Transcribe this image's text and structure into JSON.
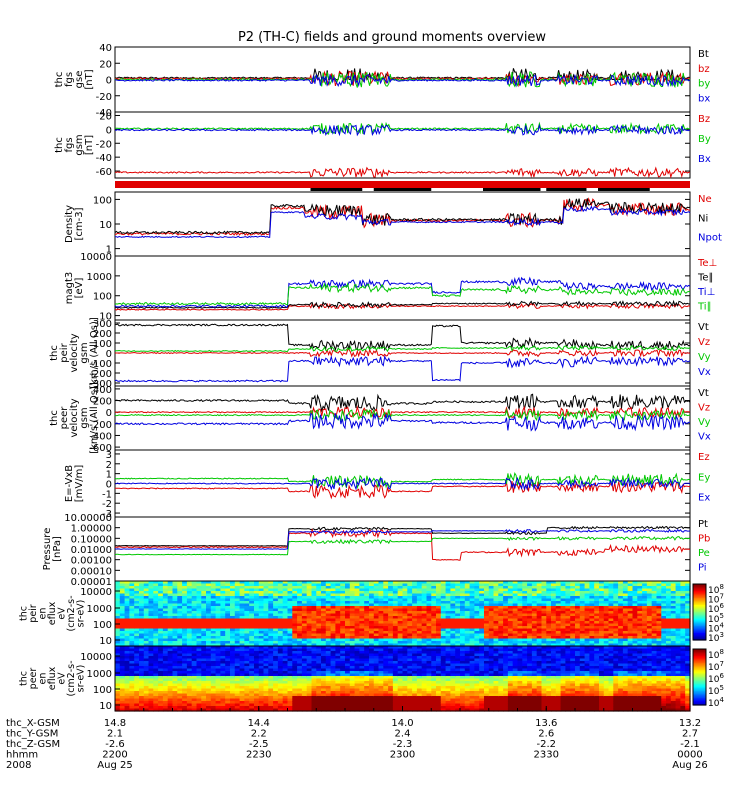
{
  "chart_data": {
    "type": "line",
    "title": "P2 (TH-C) fields and ground moments overview",
    "time": {
      "rows": [
        {
          "label": "thc_X-GSM",
          "values": [
            "14.8",
            "14.4",
            "14.0",
            "13.6",
            "13.2"
          ]
        },
        {
          "label": "thc_Y-GSM",
          "values": [
            "2.1",
            "2.2",
            "2.4",
            "2.6",
            "2.7"
          ]
        },
        {
          "label": "thc_Z-GSM",
          "values": [
            "-2.6",
            "-2.5",
            "-2.3",
            "-2.2",
            "-2.1"
          ]
        },
        {
          "label": "hhmm",
          "values": [
            "2200",
            "2230",
            "2300",
            "2330",
            "0000"
          ]
        },
        {
          "label": "2008",
          "values": [
            "Aug 25",
            "",
            "",
            "",
            "Aug 26"
          ]
        }
      ]
    },
    "panels": [
      {
        "ylabel": [
          "thc",
          "fgs",
          "gse",
          "[nT]"
        ],
        "scale": "linear",
        "ylim": [
          -40,
          40
        ],
        "ticks": [
          {
            "v": 40,
            "t": "40"
          },
          {
            "v": 20,
            "t": "20"
          },
          {
            "v": 0,
            "t": "0"
          },
          {
            "v": -20,
            "t": "-20"
          },
          {
            "v": -40,
            "t": "-40"
          }
        ],
        "series": [
          {
            "name": "Bt",
            "color": "#000000",
            "base": 2,
            "amp": 1,
            "burst": 11,
            "floor": 0,
            "cap": 34
          },
          {
            "name": "bz",
            "color": "#e00000",
            "base": 1,
            "amp": 1,
            "burst": 8,
            "cap": 20
          },
          {
            "name": "by",
            "color": "#00c800",
            "base": 0,
            "amp": 1,
            "burst": 9,
            "cap": 15
          },
          {
            "name": "bx",
            "color": "#0000e0",
            "base": -1,
            "amp": 1,
            "burst": 6,
            "cap": 10
          }
        ]
      },
      {
        "ylabel": [
          "thc",
          "fgs",
          "gsm",
          "[nT]"
        ],
        "scale": "linear",
        "ylim": [
          -70,
          25
        ],
        "ticks": [
          {
            "v": 20,
            "t": "20"
          },
          {
            "v": 0,
            "t": "0"
          },
          {
            "v": -20,
            "t": "-20"
          },
          {
            "v": -40,
            "t": "-40"
          },
          {
            "v": -60,
            "t": "-60"
          }
        ],
        "series": [
          {
            "name": "Bz",
            "color": "#e00000",
            "base": -62,
            "amp": 1,
            "burst": 6,
            "cap": -48
          },
          {
            "name": "By",
            "color": "#00c800",
            "base": 1,
            "amp": 1,
            "burst": 7,
            "cap": 15
          },
          {
            "name": "Bx",
            "color": "#0000e0",
            "base": -1,
            "amp": 1,
            "burst": 6,
            "cap": 12
          }
        ]
      },
      {
        "ylabel": [
          "Density",
          "[cm-3]"
        ],
        "scale": "log",
        "ylim": [
          0.5,
          200
        ],
        "ticks": [
          {
            "v": 100,
            "t": "100"
          },
          {
            "v": 10,
            "t": "10"
          },
          {
            "v": 1,
            "t": "1"
          }
        ],
        "series": [
          {
            "name": "Ne",
            "color": "#e00000",
            "base": 4,
            "amp": 0.1,
            "burst": 0.5,
            "levels": [
              [
                0.27,
                4
              ],
              [
                0.33,
                45
              ],
              [
                0.43,
                30
              ],
              [
                0.55,
                14
              ],
              [
                0.78,
                14
              ],
              [
                0.86,
                60
              ],
              [
                1.0,
                40
              ]
            ]
          },
          {
            "name": "Ni",
            "color": "#000000",
            "base": 4,
            "amp": 0.1,
            "burst": 0.4,
            "levels": [
              [
                0.27,
                4.5
              ],
              [
                0.33,
                55
              ],
              [
                0.43,
                35
              ],
              [
                0.55,
                15
              ],
              [
                0.78,
                15
              ],
              [
                0.86,
                70
              ],
              [
                1.0,
                45
              ]
            ]
          },
          {
            "name": "Npot",
            "color": "#0000e0",
            "base": 3,
            "amp": 0.05,
            "burst": 0.2,
            "levels": [
              [
                0.27,
                3
              ],
              [
                0.33,
                30
              ],
              [
                0.43,
                20
              ],
              [
                0.55,
                12
              ],
              [
                0.78,
                12
              ],
              [
                0.86,
                40
              ],
              [
                1.0,
                30
              ]
            ]
          }
        ]
      },
      {
        "ylabel": [
          "magt3",
          "[eV]"
        ],
        "scale": "log",
        "ylim": [
          6,
          10000
        ],
        "ticks": [
          {
            "v": 10000,
            "t": "10000"
          },
          {
            "v": 1000,
            "t": "1000"
          },
          {
            "v": 100,
            "t": "100"
          },
          {
            "v": 10,
            "t": "10"
          }
        ],
        "series": [
          {
            "name": "Te⊥",
            "color": "#e00000",
            "base": 20,
            "amp": 0.05,
            "burst": 0.2,
            "levels": [
              [
                0.3,
                20
              ],
              [
                0.55,
                30
              ],
              [
                1.0,
                30
              ]
            ]
          },
          {
            "name": "Te∥",
            "color": "#000000",
            "base": 25,
            "amp": 0.05,
            "burst": 0.2,
            "levels": [
              [
                0.3,
                25
              ],
              [
                0.55,
                35
              ],
              [
                1.0,
                40
              ]
            ]
          },
          {
            "name": "Ti⊥",
            "color": "#0000e0",
            "base": 30,
            "amp": 0.1,
            "burst": 0.3,
            "levels": [
              [
                0.3,
                30
              ],
              [
                0.55,
                400
              ],
              [
                0.6,
                150
              ],
              [
                0.78,
                500
              ],
              [
                1.0,
                300
              ]
            ]
          },
          {
            "name": "Ti∥",
            "color": "#00c800",
            "base": 30,
            "amp": 0.1,
            "burst": 0.3,
            "levels": [
              [
                0.3,
                40
              ],
              [
                0.55,
                250
              ],
              [
                0.6,
                100
              ],
              [
                0.78,
                200
              ],
              [
                1.0,
                150
              ]
            ]
          }
        ]
      },
      {
        "ylabel": [
          "thc",
          "peir",
          "velocity",
          "gsm",
          "[km/s (All Qs)]"
        ],
        "scale": "linear",
        "ylim": [
          -330,
          330
        ],
        "ticks": [
          {
            "v": 300,
            "t": "300"
          },
          {
            "v": 200,
            "t": "200"
          },
          {
            "v": 100,
            "t": "100"
          },
          {
            "v": 0,
            "t": "0"
          },
          {
            "v": -100,
            "t": "-100"
          },
          {
            "v": -200,
            "t": "-200"
          },
          {
            "v": -300,
            "t": "-300"
          }
        ],
        "series": [
          {
            "name": "Vt",
            "color": "#000000",
            "base": 280,
            "amp": 8,
            "burst": 40,
            "levels": [
              [
                0.3,
                280
              ],
              [
                0.55,
                80
              ],
              [
                0.6,
                270
              ],
              [
                0.8,
                100
              ],
              [
                1.0,
                80
              ]
            ]
          },
          {
            "name": "Vz",
            "color": "#e00000",
            "base": 0,
            "amp": 5,
            "burst": 30,
            "levels": [
              [
                1.0,
                0
              ]
            ]
          },
          {
            "name": "Vy",
            "color": "#00c800",
            "base": 20,
            "amp": 5,
            "burst": 20,
            "levels": [
              [
                0.3,
                20
              ],
              [
                0.55,
                40
              ],
              [
                1.0,
                50
              ]
            ]
          },
          {
            "name": "Vx",
            "color": "#0000e0",
            "base": -280,
            "amp": 8,
            "burst": 40,
            "levels": [
              [
                0.3,
                -280
              ],
              [
                0.55,
                -80
              ],
              [
                0.6,
                -270
              ],
              [
                0.8,
                -100
              ],
              [
                1.0,
                -80
              ]
            ]
          }
        ]
      },
      {
        "ylabel": [
          "thc",
          "peer",
          "velocity",
          "gsm",
          "[km/s (All Qs)]"
        ],
        "scale": "linear",
        "ylim": [
          -650,
          450
        ],
        "ticks": [
          {
            "v": 400,
            "t": "400"
          },
          {
            "v": 200,
            "t": "200"
          },
          {
            "v": 0,
            "t": "0"
          },
          {
            "v": -200,
            "t": "-200"
          },
          {
            "v": -400,
            "t": "-400"
          },
          {
            "v": -600,
            "t": "-600"
          }
        ],
        "series": [
          {
            "name": "Vt",
            "color": "#000000",
            "base": 200,
            "amp": 15,
            "burst": 120,
            "levels": [
              [
                0.3,
                200
              ],
              [
                0.55,
                150
              ],
              [
                1.0,
                180
              ]
            ]
          },
          {
            "name": "Vz",
            "color": "#e00000",
            "base": 0,
            "amp": 10,
            "burst": 80,
            "levels": [
              [
                1.0,
                0
              ]
            ]
          },
          {
            "name": "Vy",
            "color": "#00c800",
            "base": -50,
            "amp": 10,
            "burst": 80,
            "levels": [
              [
                1.0,
                -50
              ]
            ]
          },
          {
            "name": "Vx",
            "color": "#0000e0",
            "base": -200,
            "amp": 15,
            "burst": 120,
            "levels": [
              [
                0.3,
                -200
              ],
              [
                0.55,
                -150
              ],
              [
                1.0,
                -180
              ]
            ]
          }
        ]
      },
      {
        "ylabel": [
          "E=-VxB",
          "[mV/m]"
        ],
        "scale": "linear",
        "ylim": [
          -3.4,
          3.4
        ],
        "ticks": [
          {
            "v": 3,
            "t": "3"
          },
          {
            "v": 2,
            "t": "2"
          },
          {
            "v": 1,
            "t": "1"
          },
          {
            "v": 0,
            "t": "0"
          },
          {
            "v": -1,
            "t": "-1"
          },
          {
            "v": -2,
            "t": "-2"
          },
          {
            "v": -3,
            "t": "-3"
          }
        ],
        "series": [
          {
            "name": "Ez",
            "color": "#e00000",
            "base": -0.5,
            "amp": 0.05,
            "burst": 0.6,
            "levels": [
              [
                0.3,
                -0.5
              ],
              [
                0.55,
                -0.8
              ],
              [
                1.0,
                -0.3
              ]
            ]
          },
          {
            "name": "Ey",
            "color": "#00c800",
            "base": 0.5,
            "amp": 0.05,
            "burst": 0.6,
            "levels": [
              [
                0.3,
                0.5
              ],
              [
                0.55,
                0.2
              ],
              [
                1.0,
                0.4
              ]
            ]
          },
          {
            "name": "Ex",
            "color": "#0000e0",
            "base": 0,
            "amp": 0.05,
            "burst": 0.5,
            "levels": [
              [
                1.0,
                0
              ]
            ]
          }
        ]
      },
      {
        "ylabel": [
          "Pressure",
          "[nPa]"
        ],
        "scale": "log",
        "ylim": [
          1e-05,
          10
        ],
        "ticks": [
          {
            "v": 10,
            "t": "10.00000"
          },
          {
            "v": 1,
            "t": "1.00000"
          },
          {
            "v": 0.1,
            "t": "0.10000"
          },
          {
            "v": 0.01,
            "t": "0.01000"
          },
          {
            "v": 0.001,
            "t": "0.00100"
          },
          {
            "v": 0.0001,
            "t": "0.00010"
          },
          {
            "v": 1e-05,
            "t": "0.00001"
          }
        ],
        "series": [
          {
            "name": "Pt",
            "color": "#000000",
            "base": 0.02,
            "amp": 0.05,
            "burst": 0.2,
            "levels": [
              [
                0.3,
                0.02
              ],
              [
                0.55,
                0.8
              ],
              [
                0.75,
                0.3
              ],
              [
                1.0,
                1.0
              ]
            ]
          },
          {
            "name": "Pb",
            "color": "#e00000",
            "base": 0.015,
            "amp": 0.1,
            "burst": 0.6,
            "levels": [
              [
                0.3,
                0.015
              ],
              [
                0.55,
                0.3
              ],
              [
                0.6,
                0.001
              ],
              [
                0.85,
                0.005
              ],
              [
                1.0,
                0.01
              ]
            ]
          },
          {
            "name": "Pe",
            "color": "#00c800",
            "base": 0.003,
            "amp": 0.05,
            "burst": 0.3,
            "levels": [
              [
                0.3,
                0.003
              ],
              [
                0.55,
                0.05
              ],
              [
                1.0,
                0.1
              ]
            ]
          },
          {
            "name": "Pi",
            "color": "#0000e0",
            "base": 0.01,
            "amp": 0.05,
            "burst": 0.2,
            "levels": [
              [
                0.3,
                0.01
              ],
              [
                0.55,
                0.4
              ],
              [
                1.0,
                0.5
              ]
            ]
          }
        ]
      }
    ],
    "spectrograms": [
      {
        "ylabel": [
          "thc",
          "peir",
          "en",
          "eflux",
          "eV",
          "(cm2-s-",
          "sr-eV)"
        ],
        "ticks": [
          "10000",
          "1000",
          "100",
          "10"
        ],
        "cbar_ticks": [
          {
            "t": "10",
            "e": "8"
          },
          {
            "t": "10",
            "e": "7"
          },
          {
            "t": "10",
            "e": "6"
          },
          {
            "t": "10",
            "e": "5"
          },
          {
            "t": "10",
            "e": "4"
          },
          {
            "t": "10",
            "e": "3"
          }
        ]
      },
      {
        "ylabel": [
          "thc",
          "peer",
          "en",
          "eflux",
          "eV",
          "(cm2-s-",
          "sr-eV)"
        ],
        "ticks": [
          "10000",
          "1000",
          "100",
          "10"
        ],
        "cbar_ticks": [
          {
            "t": "10",
            "e": "8"
          },
          {
            "t": "10",
            "e": "7"
          },
          {
            "t": "10",
            "e": "6"
          },
          {
            "t": "10",
            "e": "5"
          },
          {
            "t": "10",
            "e": "4"
          }
        ]
      }
    ],
    "colors": {
      "black": "#000000",
      "red": "#e00000",
      "green": "#00c800",
      "blue": "#0000e0"
    }
  }
}
